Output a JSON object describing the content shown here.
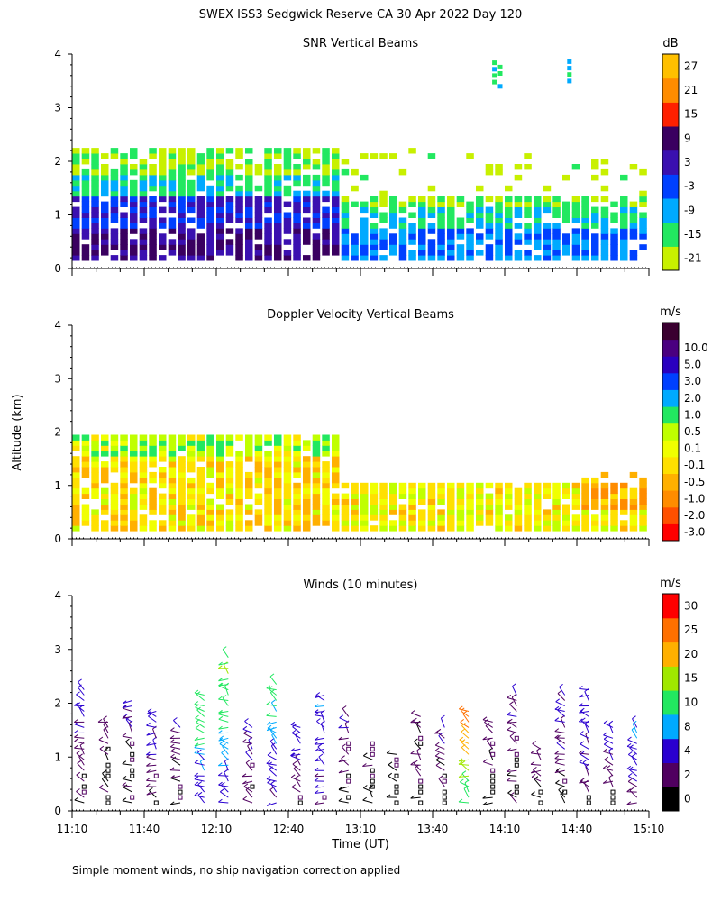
{
  "title": "SWEX ISS3 Sedgwick Reserve CA  30 Apr 2022 Day 120",
  "footnote": "Simple moment winds, no ship navigation correction applied",
  "shared": {
    "ylabel": "Altitude (km)",
    "xlabel": "Time (UT)",
    "x_tick_labels": [
      "11:10",
      "11:40",
      "12:10",
      "12:40",
      "13:10",
      "13:40",
      "14:10",
      "14:40",
      "15:10"
    ],
    "y_tick_labels": [
      "0",
      "1",
      "2",
      "3",
      "4"
    ],
    "xlim": [
      "11:10",
      "15:10"
    ],
    "ylim_km": [
      0,
      4
    ]
  },
  "chart_data": [
    {
      "type": "heatmap",
      "title": "SNR Vertical Beams",
      "colorbar_unit": "dB",
      "colorbar_levels": [
        "-21",
        "-15",
        "-9",
        "-3",
        "3",
        "9",
        "15",
        "21",
        "27"
      ],
      "colorbar_colors": [
        "#c8f000",
        "#22e860",
        "#00aaff",
        "#0040ff",
        "#3a10b0",
        "#3a0060",
        "#ff2000",
        "#ff8c00",
        "#ffc000"
      ],
      "ylim_km": [
        0,
        4
      ],
      "data_extent_km": [
        0.15,
        2.5
      ],
      "summary": [
        {
          "time_range": [
            "11:10",
            "13:00"
          ],
          "altitude_km": [
            0.15,
            0.7
          ],
          "snr_db": 9
        },
        {
          "time_range": [
            "11:10",
            "13:00"
          ],
          "altitude_km": [
            0.7,
            1.3
          ],
          "snr_db": 3
        },
        {
          "time_range": [
            "11:10",
            "13:00"
          ],
          "altitude_km": [
            1.3,
            1.7
          ],
          "snr_db": -9
        },
        {
          "time_range": [
            "11:10",
            "13:00"
          ],
          "altitude_km": [
            1.7,
            2.2
          ],
          "snr_db": -15
        },
        {
          "time_range": [
            "13:00",
            "15:10"
          ],
          "altitude_km": [
            0.15,
            0.7
          ],
          "snr_db": -3
        },
        {
          "time_range": [
            "13:00",
            "15:10"
          ],
          "altitude_km": [
            0.7,
            1.1
          ],
          "snr_db": -9
        },
        {
          "time_range": [
            "13:00",
            "15:10"
          ],
          "altitude_km": [
            1.1,
            1.3
          ],
          "snr_db": -15
        }
      ]
    },
    {
      "type": "heatmap",
      "title": "Doppler Velocity Vertical Beams",
      "colorbar_unit": "m/s",
      "colorbar_levels": [
        "-3.0",
        "-2.0",
        "-1.0",
        "-0.5",
        "-0.1",
        "0.1",
        "0.5",
        "1.0",
        "2.0",
        "3.0",
        "5.0",
        "10.0"
      ],
      "colorbar_colors": [
        "#ff0000",
        "#ff5000",
        "#ff8c00",
        "#ffb000",
        "#ffe000",
        "#f0ff00",
        "#c0ff00",
        "#22e860",
        "#00aaff",
        "#0040ff",
        "#2a00c0",
        "#4a0080",
        "#3a0030"
      ],
      "ylim_km": [
        0,
        4
      ],
      "data_extent_km": [
        0.15,
        2.0
      ],
      "summary": [
        {
          "time_range": [
            "11:10",
            "13:00"
          ],
          "altitude_km": [
            0.15,
            1.5
          ],
          "velocity_ms": -0.3
        },
        {
          "time_range": [
            "11:10",
            "13:00"
          ],
          "altitude_km": [
            1.5,
            1.9
          ],
          "velocity_ms": 0.3
        },
        {
          "time_range": [
            "13:00",
            "15:10"
          ],
          "altitude_km": [
            0.15,
            1.0
          ],
          "velocity_ms": -0.1
        },
        {
          "time_range": [
            "14:40",
            "15:10"
          ],
          "altitude_km": [
            0.5,
            1.2
          ],
          "velocity_ms": -0.8
        }
      ]
    },
    {
      "type": "scatter",
      "subtype": "wind barbs",
      "title": "Winds (10 minutes)",
      "colorbar_unit": "m/s",
      "colorbar_levels": [
        "0",
        "2",
        "4",
        "8",
        "10",
        "15",
        "20",
        "25",
        "30"
      ],
      "colorbar_colors": [
        "#000000",
        "#500060",
        "#2a00d0",
        "#00aaff",
        "#22e860",
        "#a0e800",
        "#ffb000",
        "#ff7000",
        "#ff0000"
      ],
      "ylim_km": [
        0,
        4
      ],
      "profiles": [
        {
          "time": "11:15",
          "top_km": 2.3,
          "speed_ms": 5
        },
        {
          "time": "11:25",
          "top_km": 1.7,
          "speed_ms": 3
        },
        {
          "time": "11:35",
          "top_km": 2.1,
          "speed_ms": 4
        },
        {
          "time": "11:45",
          "top_km": 1.9,
          "speed_ms": 6
        },
        {
          "time": "11:55",
          "top_km": 1.6,
          "speed_ms": 4
        },
        {
          "time": "12:05",
          "top_km": 2.2,
          "speed_ms": 14
        },
        {
          "time": "12:15",
          "top_km": 2.9,
          "speed_ms": 16
        },
        {
          "time": "12:25",
          "top_km": 1.6,
          "speed_ms": 5
        },
        {
          "time": "12:35",
          "top_km": 2.4,
          "speed_ms": 12
        },
        {
          "time": "12:45",
          "top_km": 1.6,
          "speed_ms": 6
        },
        {
          "time": "12:55",
          "top_km": 2.2,
          "speed_ms": 9
        },
        {
          "time": "13:05",
          "top_km": 1.8,
          "speed_ms": 4
        },
        {
          "time": "13:15",
          "top_km": 1.3,
          "speed_ms": 3
        },
        {
          "time": "13:25",
          "top_km": 1.1,
          "speed_ms": 2
        },
        {
          "time": "13:35",
          "top_km": 1.8,
          "speed_ms": 3
        },
        {
          "time": "13:45",
          "top_km": 1.6,
          "speed_ms": 4
        },
        {
          "time": "13:55",
          "top_km": 1.9,
          "speed_ms": 28
        },
        {
          "time": "14:05",
          "top_km": 1.7,
          "speed_ms": 3
        },
        {
          "time": "14:15",
          "top_km": 2.2,
          "speed_ms": 4
        },
        {
          "time": "14:25",
          "top_km": 1.2,
          "speed_ms": 3
        },
        {
          "time": "14:35",
          "top_km": 2.2,
          "speed_ms": 5
        },
        {
          "time": "14:45",
          "top_km": 2.3,
          "speed_ms": 7
        },
        {
          "time": "14:55",
          "top_km": 1.6,
          "speed_ms": 5
        },
        {
          "time": "15:05",
          "top_km": 1.6,
          "speed_ms": 8
        }
      ]
    }
  ]
}
